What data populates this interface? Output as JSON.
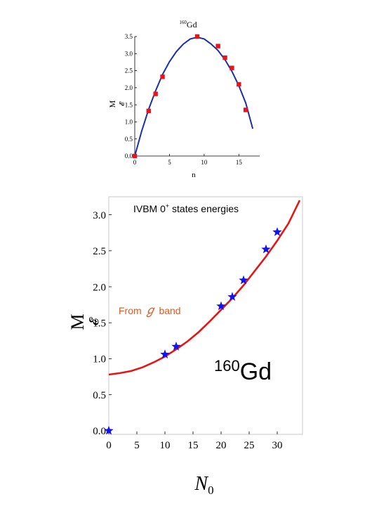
{
  "chart_data": [
    {
      "type": "scatter",
      "title": "160Gd",
      "title_mass": "160",
      "title_element": "Gd",
      "xlabel": "n",
      "ylabel": "M",
      "ylabel_glyph": "𝓔",
      "xlim": [
        0,
        18
      ],
      "ylim": [
        0,
        3.5
      ],
      "xticks": [
        0,
        5,
        10,
        15
      ],
      "yticks": [
        0.0,
        0.5,
        1.0,
        1.5,
        2.0,
        2.5,
        3.0,
        3.5
      ],
      "xtick_labels": [
        "0",
        "5",
        "10",
        "15"
      ],
      "ytick_labels": [
        "0.0",
        "0.5",
        "1.0",
        "1.5",
        "2.0",
        "2.5",
        "3.0",
        "3.5"
      ],
      "grid": false,
      "points": {
        "color": "#e8141b",
        "x": [
          0,
          2,
          3,
          4,
          9,
          12,
          13,
          14,
          15,
          16
        ],
        "y": [
          0.0,
          1.32,
          1.82,
          2.32,
          3.5,
          3.22,
          2.88,
          2.58,
          2.1,
          1.35
        ]
      },
      "curve": {
        "color": "#1a2fa8",
        "x": [
          0,
          1,
          2,
          3,
          4,
          5,
          6,
          7,
          8,
          9,
          10,
          11,
          12,
          13,
          14,
          15,
          16,
          17
        ],
        "y": [
          0.0,
          0.73,
          1.37,
          1.91,
          2.39,
          2.76,
          3.06,
          3.28,
          3.43,
          3.48,
          3.43,
          3.28,
          3.09,
          2.82,
          2.48,
          2.06,
          1.55,
          0.8
        ]
      }
    },
    {
      "type": "scatter",
      "title": "IVBM 0+ states energies",
      "title_main": "IVBM 0",
      "title_sup": "+",
      "title_rest": " states energies",
      "annotation": "160Gd",
      "annotation_mass": "160",
      "annotation_element": "Gd",
      "curve_label_pre": "From ",
      "curve_label_glyph": "ℊ",
      "curve_label_post": " band",
      "xlabel": "N0",
      "xlabel_main": "N",
      "xlabel_sub": "0",
      "ylabel": "M",
      "ylabel_glyph": "𝓔",
      "xlim": [
        0,
        34.5
      ],
      "ylim": [
        -0.05,
        3.25
      ],
      "xticks": [
        0,
        5,
        10,
        15,
        20,
        25,
        30
      ],
      "yticks": [
        0.0,
        0.5,
        1.0,
        1.5,
        2.0,
        2.5,
        3.0
      ],
      "xtick_labels": [
        "0",
        "5",
        "10",
        "15",
        "20",
        "25",
        "30"
      ],
      "ytick_labels": [
        "0.0",
        "0.5",
        "1.0",
        "1.5",
        "2.0",
        "2.5",
        "3.0"
      ],
      "grid": false,
      "points": {
        "color": "#1414e6",
        "marker": "star",
        "x": [
          0,
          10,
          12,
          20,
          22,
          24,
          28,
          30
        ],
        "y": [
          0.0,
          1.06,
          1.17,
          1.73,
          1.86,
          2.09,
          2.52,
          2.76
        ]
      },
      "curve": {
        "color": "#e81414",
        "x": [
          0,
          2,
          4,
          6,
          8,
          10,
          12,
          14,
          16,
          18,
          20,
          22,
          24,
          26,
          28,
          30,
          32,
          34
        ],
        "y": [
          0.78,
          0.8,
          0.83,
          0.88,
          0.95,
          1.03,
          1.13,
          1.24,
          1.37,
          1.52,
          1.68,
          1.84,
          2.02,
          2.22,
          2.42,
          2.64,
          2.88,
          3.2
        ]
      }
    }
  ]
}
